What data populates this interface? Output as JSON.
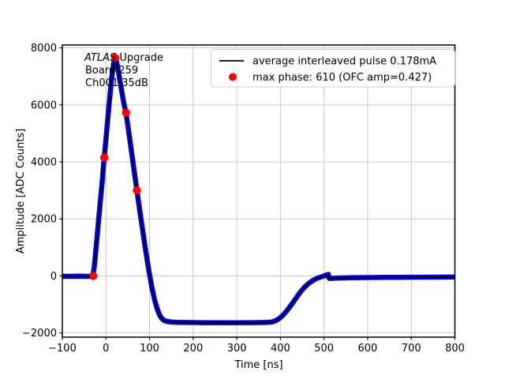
{
  "chart_data": {
    "type": "line",
    "title": "",
    "xlabel": "Time [ns]",
    "ylabel": "Amplitude [ADC Counts]",
    "xlim": [
      -100,
      800
    ],
    "ylim": [
      -2150,
      8100
    ],
    "xticks": [
      -100,
      0,
      100,
      200,
      300,
      400,
      500,
      600,
      700,
      800
    ],
    "yticks": [
      -2000,
      0,
      2000,
      4000,
      6000,
      8000
    ],
    "grid": true,
    "grid_color": "#c8c8c8",
    "spine_color": "#000000",
    "background_color": "#ffffff",
    "annotation": {
      "line1_italic": "ATLAS",
      "line1_rest": " Upgrade",
      "line2": "Board 259",
      "line3": "Ch001 35dB"
    },
    "legend": {
      "position": "upper right",
      "entries": [
        {
          "marker": "line",
          "color": "#000000",
          "label": "average interleaved pulse 0.178mA"
        },
        {
          "marker": "dot",
          "color": "#ff0000",
          "label": "max phase: 610 (OFC amp=0.427)"
        }
      ]
    },
    "series": [
      {
        "name": "average interleaved pulse",
        "style": "band+line",
        "band_color": "#0000e0",
        "line_color": "#000000",
        "points": [
          [
            -100,
            -15
          ],
          [
            -80,
            -18
          ],
          [
            -60,
            -12
          ],
          [
            -45,
            -18
          ],
          [
            -36,
            -15
          ],
          [
            -32,
            -8
          ],
          [
            -30,
            20
          ],
          [
            -28,
            180
          ],
          [
            -26,
            430
          ],
          [
            -24,
            760
          ],
          [
            -22,
            1090
          ],
          [
            -20,
            1420
          ],
          [
            -18,
            1760
          ],
          [
            -16,
            2090
          ],
          [
            -14,
            2420
          ],
          [
            -12,
            2760
          ],
          [
            -10,
            3090
          ],
          [
            -8,
            3420
          ],
          [
            -6,
            3820
          ],
          [
            -4,
            4150
          ],
          [
            -2,
            4480
          ],
          [
            0,
            4810
          ],
          [
            2,
            5140
          ],
          [
            4,
            5480
          ],
          [
            6,
            5810
          ],
          [
            8,
            6140
          ],
          [
            10,
            6470
          ],
          [
            12,
            6780
          ],
          [
            14,
            7050
          ],
          [
            16,
            7280
          ],
          [
            18,
            7470
          ],
          [
            20,
            7610
          ],
          [
            21,
            7650
          ],
          [
            23,
            7590
          ],
          [
            25,
            7460
          ],
          [
            27,
            7300
          ],
          [
            30,
            7030
          ],
          [
            33,
            6760
          ],
          [
            36,
            6490
          ],
          [
            39,
            6230
          ],
          [
            42,
            5980
          ],
          [
            46,
            5730
          ],
          [
            50,
            5300
          ],
          [
            54,
            4860
          ],
          [
            58,
            4420
          ],
          [
            62,
            3970
          ],
          [
            66,
            3530
          ],
          [
            71,
            3000
          ],
          [
            75,
            2570
          ],
          [
            79,
            2140
          ],
          [
            83,
            1710
          ],
          [
            87,
            1300
          ],
          [
            91,
            890
          ],
          [
            95,
            500
          ],
          [
            99,
            130
          ],
          [
            102,
            -130
          ],
          [
            105,
            -380
          ],
          [
            108,
            -600
          ],
          [
            111,
            -800
          ],
          [
            114,
            -975
          ],
          [
            117,
            -1130
          ],
          [
            120,
            -1260
          ],
          [
            124,
            -1400
          ],
          [
            128,
            -1490
          ],
          [
            133,
            -1560
          ],
          [
            140,
            -1600
          ],
          [
            150,
            -1620
          ],
          [
            165,
            -1630
          ],
          [
            185,
            -1635
          ],
          [
            220,
            -1640
          ],
          [
            280,
            -1642
          ],
          [
            340,
            -1640
          ],
          [
            370,
            -1632
          ],
          [
            382,
            -1612
          ],
          [
            390,
            -1565
          ],
          [
            398,
            -1488
          ],
          [
            406,
            -1378
          ],
          [
            414,
            -1240
          ],
          [
            422,
            -1080
          ],
          [
            430,
            -905
          ],
          [
            438,
            -730
          ],
          [
            446,
            -565
          ],
          [
            454,
            -420
          ],
          [
            462,
            -300
          ],
          [
            470,
            -205
          ],
          [
            478,
            -130
          ],
          [
            486,
            -75
          ],
          [
            494,
            -30
          ],
          [
            500,
            0
          ],
          [
            505,
            25
          ],
          [
            508,
            45
          ],
          [
            510,
            55
          ],
          [
            511,
            -70
          ],
          [
            513,
            -95
          ],
          [
            516,
            -90
          ],
          [
            525,
            -80
          ],
          [
            540,
            -72
          ],
          [
            560,
            -65
          ],
          [
            600,
            -58
          ],
          [
            650,
            -52
          ],
          [
            700,
            -48
          ],
          [
            750,
            -45
          ],
          [
            800,
            -42
          ]
        ]
      },
      {
        "name": "max phase samples",
        "style": "scatter",
        "color": "#ff0000",
        "points": [
          [
            -29,
            0
          ],
          [
            -4,
            4150
          ],
          [
            21,
            7650
          ],
          [
            46,
            5730
          ],
          [
            71,
            3000
          ]
        ]
      }
    ]
  }
}
